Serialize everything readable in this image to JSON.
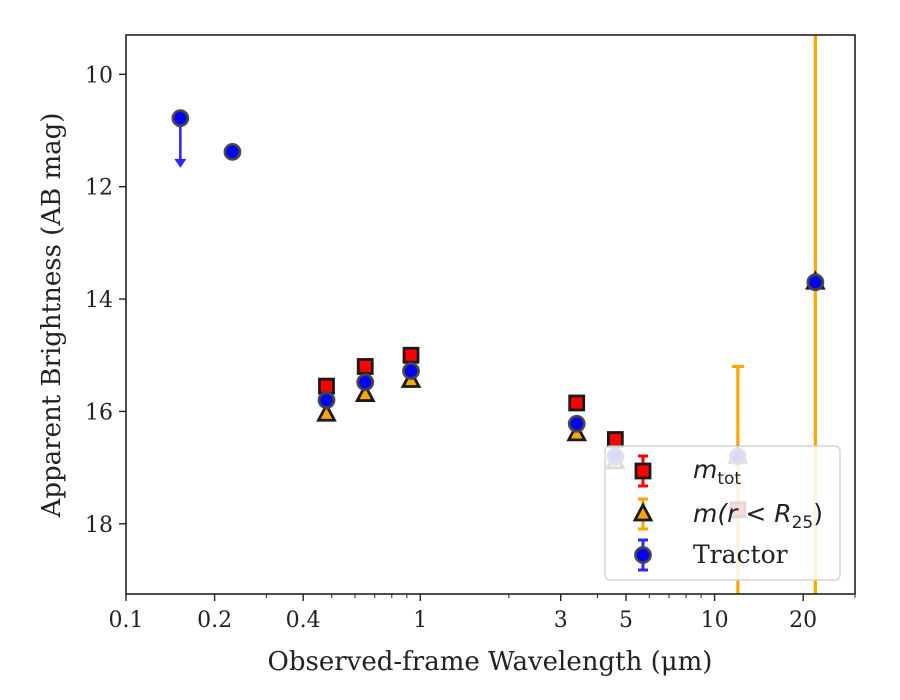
{
  "chart_data": {
    "type": "scatter",
    "title": "",
    "xlabel": "Observed-frame Wavelength (μm)",
    "ylabel": "Apparent Brightness (AB mag)",
    "x_scale": "log",
    "xlim": [
      0.1,
      30
    ],
    "ylim": [
      19.25,
      9.3
    ],
    "y_inverted": true,
    "grid": false,
    "legend_position": "lower-right",
    "x_ticks": [
      {
        "value": 0.1,
        "label": "0.1"
      },
      {
        "value": 0.2,
        "label": "0.2"
      },
      {
        "value": 0.4,
        "label": "0.4"
      },
      {
        "value": 1,
        "label": "1"
      },
      {
        "value": 3,
        "label": "3"
      },
      {
        "value": 5,
        "label": "5"
      },
      {
        "value": 10,
        "label": "10"
      },
      {
        "value": 20,
        "label": "20"
      }
    ],
    "y_ticks": [
      {
        "value": 10,
        "label": "10"
      },
      {
        "value": 12,
        "label": "12"
      },
      {
        "value": 14,
        "label": "14"
      },
      {
        "value": 16,
        "label": "16"
      },
      {
        "value": 18,
        "label": "18"
      }
    ],
    "series": [
      {
        "name": "m_tot",
        "legend_main": "m",
        "legend_sub": "tot",
        "marker": "square",
        "color": "#ff0000",
        "edge_color": "#1a1a1a",
        "error_color": "#ff0000",
        "points": [
          {
            "x": 0.48,
            "y": 15.55
          },
          {
            "x": 0.65,
            "y": 15.2
          },
          {
            "x": 0.93,
            "y": 15.0
          },
          {
            "x": 3.4,
            "y": 15.85
          },
          {
            "x": 4.6,
            "y": 16.5
          },
          {
            "x": 12.0,
            "y": 17.75
          }
        ]
      },
      {
        "name": "m(r < R25)",
        "legend_main": "m(r < R",
        "legend_sub": "25",
        "legend_tail": ")",
        "marker": "triangle",
        "color": "#ffa500",
        "edge_color": "#1a1a1a",
        "error_color": "#ffa500",
        "points": [
          {
            "x": 0.48,
            "y": 16.05
          },
          {
            "x": 0.65,
            "y": 15.7
          },
          {
            "x": 0.93,
            "y": 15.45
          },
          {
            "x": 3.4,
            "y": 16.4
          },
          {
            "x": 4.6,
            "y": 16.9
          },
          {
            "x": 12.0,
            "y": 16.8,
            "yerr_lower": 15.2,
            "yerr_upper": 19.25
          },
          {
            "x": 22.0,
            "y": 13.7,
            "yerr_lower": 9.3,
            "yerr_upper": 19.25
          }
        ]
      },
      {
        "name": "Tractor",
        "legend_main": "Tractor",
        "marker": "circle",
        "color": "#0000ff",
        "edge_color": "#444444",
        "error_color": "#2a2aff",
        "points": [
          {
            "x": 0.153,
            "y": 10.78,
            "upper_limit": true
          },
          {
            "x": 0.23,
            "y": 11.38
          },
          {
            "x": 0.48,
            "y": 15.8
          },
          {
            "x": 0.65,
            "y": 15.48
          },
          {
            "x": 0.93,
            "y": 15.28
          },
          {
            "x": 3.4,
            "y": 16.22
          },
          {
            "x": 4.6,
            "y": 16.8
          },
          {
            "x": 12.0,
            "y": 16.8
          },
          {
            "x": 22.0,
            "y": 13.7
          }
        ]
      }
    ]
  }
}
